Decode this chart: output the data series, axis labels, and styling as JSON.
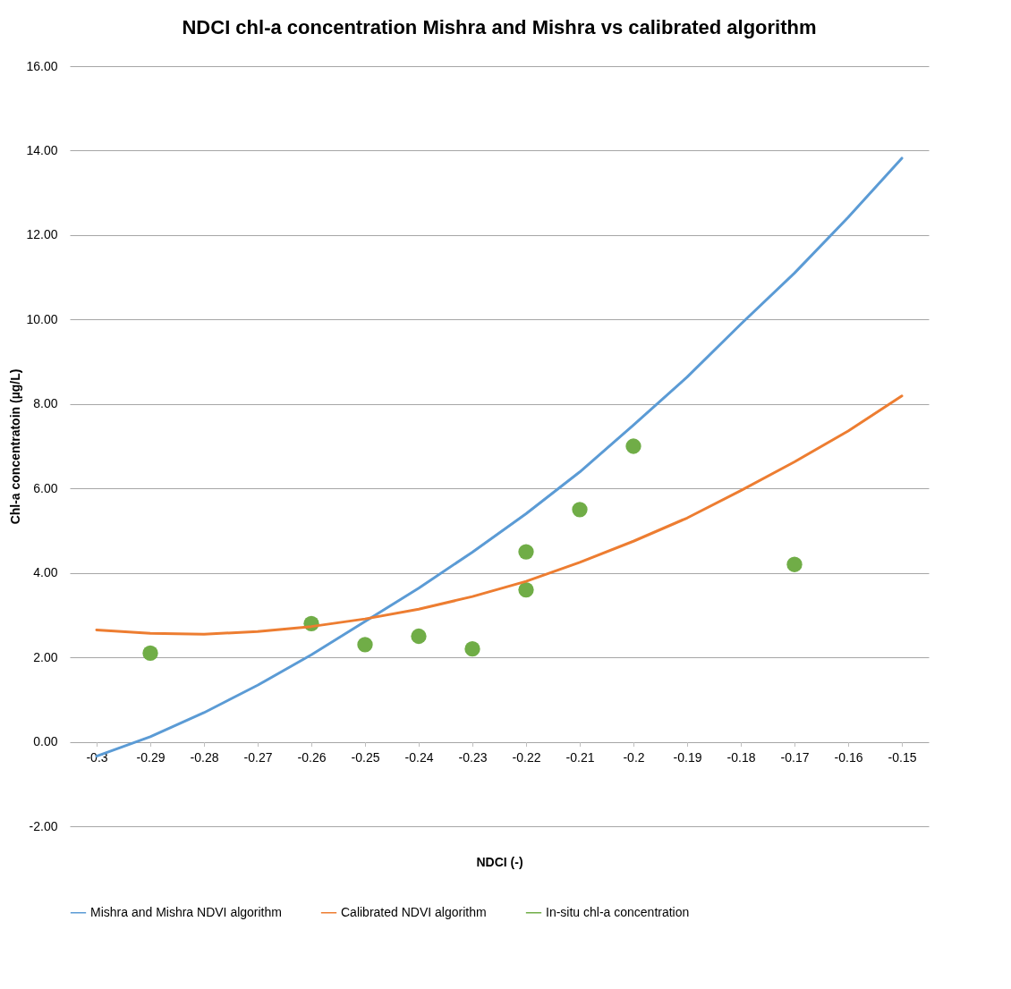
{
  "chart_data": {
    "type": "line",
    "title": "NDCI chl-a concentration Mishra and Mishra vs calibrated algorithm",
    "xlabel": "NDCI (-)",
    "ylabel": "Chl-a concentratoin (µg/L)",
    "xlim": [
      -0.305,
      -0.145
    ],
    "xticks": [
      -0.3,
      -0.29,
      -0.28,
      -0.27,
      -0.26,
      -0.25,
      -0.24,
      -0.23,
      -0.22,
      -0.21,
      -0.2,
      -0.19,
      -0.18,
      -0.17,
      -0.16,
      -0.15
    ],
    "ylim": [
      -2,
      16
    ],
    "yticks": [
      {
        "value": -2,
        "label": "-2.00"
      },
      {
        "value": 0,
        "label": "0.00"
      },
      {
        "value": 2,
        "label": "2.00"
      },
      {
        "value": 4,
        "label": "4.00"
      },
      {
        "value": 6,
        "label": "6.00"
      },
      {
        "value": 8,
        "label": "8.00"
      },
      {
        "value": 10,
        "label": "10.00"
      },
      {
        "value": 12,
        "label": "12.00"
      },
      {
        "value": 14,
        "label": "14.00"
      },
      {
        "value": 16,
        "label": "16.00"
      }
    ],
    "grid": "y",
    "legend": "bottom",
    "x": [
      -0.3,
      -0.29,
      -0.28,
      -0.27,
      -0.26,
      -0.25,
      -0.24,
      -0.23,
      -0.22,
      -0.21,
      -0.2,
      -0.19,
      -0.18,
      -0.17,
      -0.16,
      -0.15
    ],
    "series": [
      {
        "name": "Mishra and Mishra NDVI algorithm",
        "color": "#5b9bd5",
        "values": [
          -0.34,
          0.12,
          0.69,
          1.34,
          2.06,
          2.85,
          3.64,
          4.49,
          5.4,
          6.39,
          7.5,
          8.64,
          9.89,
          11.1,
          12.42,
          13.82
        ]
      },
      {
        "name": "Calibrated NDVI algorithm",
        "color": "#ed7d31",
        "values": [
          2.65,
          2.57,
          2.55,
          2.61,
          2.73,
          2.91,
          3.14,
          3.44,
          3.8,
          4.25,
          4.75,
          5.3,
          5.95,
          6.63,
          7.36,
          8.19
        ]
      },
      {
        "name": "In-situ chl-a concentration",
        "type": "scatter",
        "marker": "circle",
        "color": "#70ad47",
        "x": [
          -0.29,
          -0.26,
          -0.25,
          -0.24,
          -0.23,
          -0.22,
          -0.22,
          -0.21,
          -0.2,
          -0.17
        ],
        "values": [
          2.1,
          2.8,
          2.3,
          2.5,
          2.2,
          4.5,
          3.6,
          5.5,
          7.0,
          4.2
        ]
      }
    ]
  }
}
